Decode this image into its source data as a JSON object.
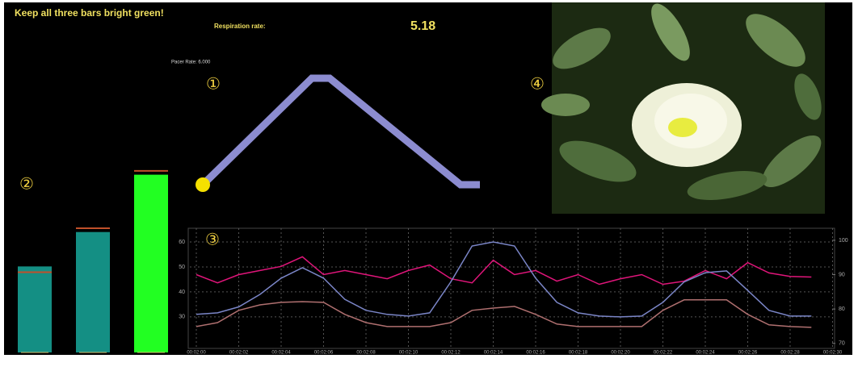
{
  "header": {
    "instruction": "Keep all three bars bright green!",
    "respiration_label": "Respiration rate:",
    "respiration_value": 5.18,
    "pacer_rate": "Pacer Rate: 6.000"
  },
  "markers": [
    "①",
    "②",
    "③",
    "④"
  ],
  "chart_data": [
    {
      "type": "bar",
      "values": [
        45,
        63,
        93
      ],
      "targets": [
        42,
        65,
        95
      ],
      "colors": [
        "#148f84",
        "#148f84",
        "#22ff22"
      ],
      "target_color": "#c0502a",
      "ylim": [
        0,
        100
      ]
    },
    {
      "type": "line",
      "x": [
        120,
        121,
        122,
        123,
        124,
        125,
        126,
        127,
        128,
        129,
        130,
        131,
        132,
        133,
        134,
        135,
        136,
        137,
        138,
        139,
        140,
        141,
        142,
        143,
        144,
        145,
        146,
        147,
        148,
        149
      ],
      "series": [
        {
          "color": "#e0157a",
          "axis": "y2",
          "values": [
            90,
            87.6,
            90,
            91.2,
            92.4,
            95.2,
            90,
            91.2,
            90,
            88.8,
            91.2,
            92.8,
            88.8,
            87.6,
            94.2,
            90,
            91.2,
            88.1,
            90,
            87.2,
            88.8,
            90,
            87.2,
            88.1,
            91.2,
            88.8,
            93.5,
            90.5,
            89.5,
            89.3
          ]
        },
        {
          "color": "#7b86c8",
          "values": [
            31,
            31.6,
            34,
            39,
            45.5,
            49.7,
            45.5,
            37,
            32.6,
            31,
            30.3,
            31.6,
            44,
            58.4,
            60,
            58.4,
            45.5,
            35.8,
            31.6,
            30.3,
            30,
            30.3,
            35.8,
            44,
            47.7,
            48.4,
            40.6,
            32.6,
            30.3,
            30.3
          ]
        },
        {
          "color": "#b07070",
          "values": [
            26.1,
            27.7,
            32.6,
            34.8,
            35.8,
            36.1,
            35.8,
            31,
            27.7,
            26.1,
            26.1,
            26.1,
            27.7,
            32.6,
            33.5,
            34.2,
            31,
            27.1,
            26.1,
            26.1,
            26.1,
            26.1,
            32.6,
            36.8,
            36.8,
            36.8,
            31,
            26.8,
            26.1,
            25.8
          ]
        }
      ],
      "xlim": [
        119.7,
        150
      ],
      "xticks": [
        {
          "value": 120,
          "label": "00:02:00"
        },
        {
          "value": 122,
          "label": "00:02:02"
        },
        {
          "value": 124,
          "label": "00:02:04"
        },
        {
          "value": 126,
          "label": "00:02:06"
        },
        {
          "value": 128,
          "label": "00:02:08"
        },
        {
          "value": 130,
          "label": "00:02:10"
        },
        {
          "value": 132,
          "label": "00:02:12"
        },
        {
          "value": 134,
          "label": "00:02:14"
        },
        {
          "value": 136,
          "label": "00:02:16"
        },
        {
          "value": 138,
          "label": "00:02:18"
        },
        {
          "value": 140,
          "label": "00:02:20"
        },
        {
          "value": 142,
          "label": "00:02:22"
        },
        {
          "value": 144,
          "label": "00:02:24"
        },
        {
          "value": 146,
          "label": "00:02:26"
        },
        {
          "value": 148,
          "label": "00:02:28"
        },
        {
          "value": 150,
          "label": "00:02:30"
        }
      ],
      "ylim": [
        18,
        65.5
      ],
      "yticks": [
        30,
        40,
        50,
        60
      ],
      "y2lim": [
        69,
        103.5
      ],
      "y2ticks": [
        70,
        80,
        90,
        100
      ],
      "grid": true
    }
  ]
}
